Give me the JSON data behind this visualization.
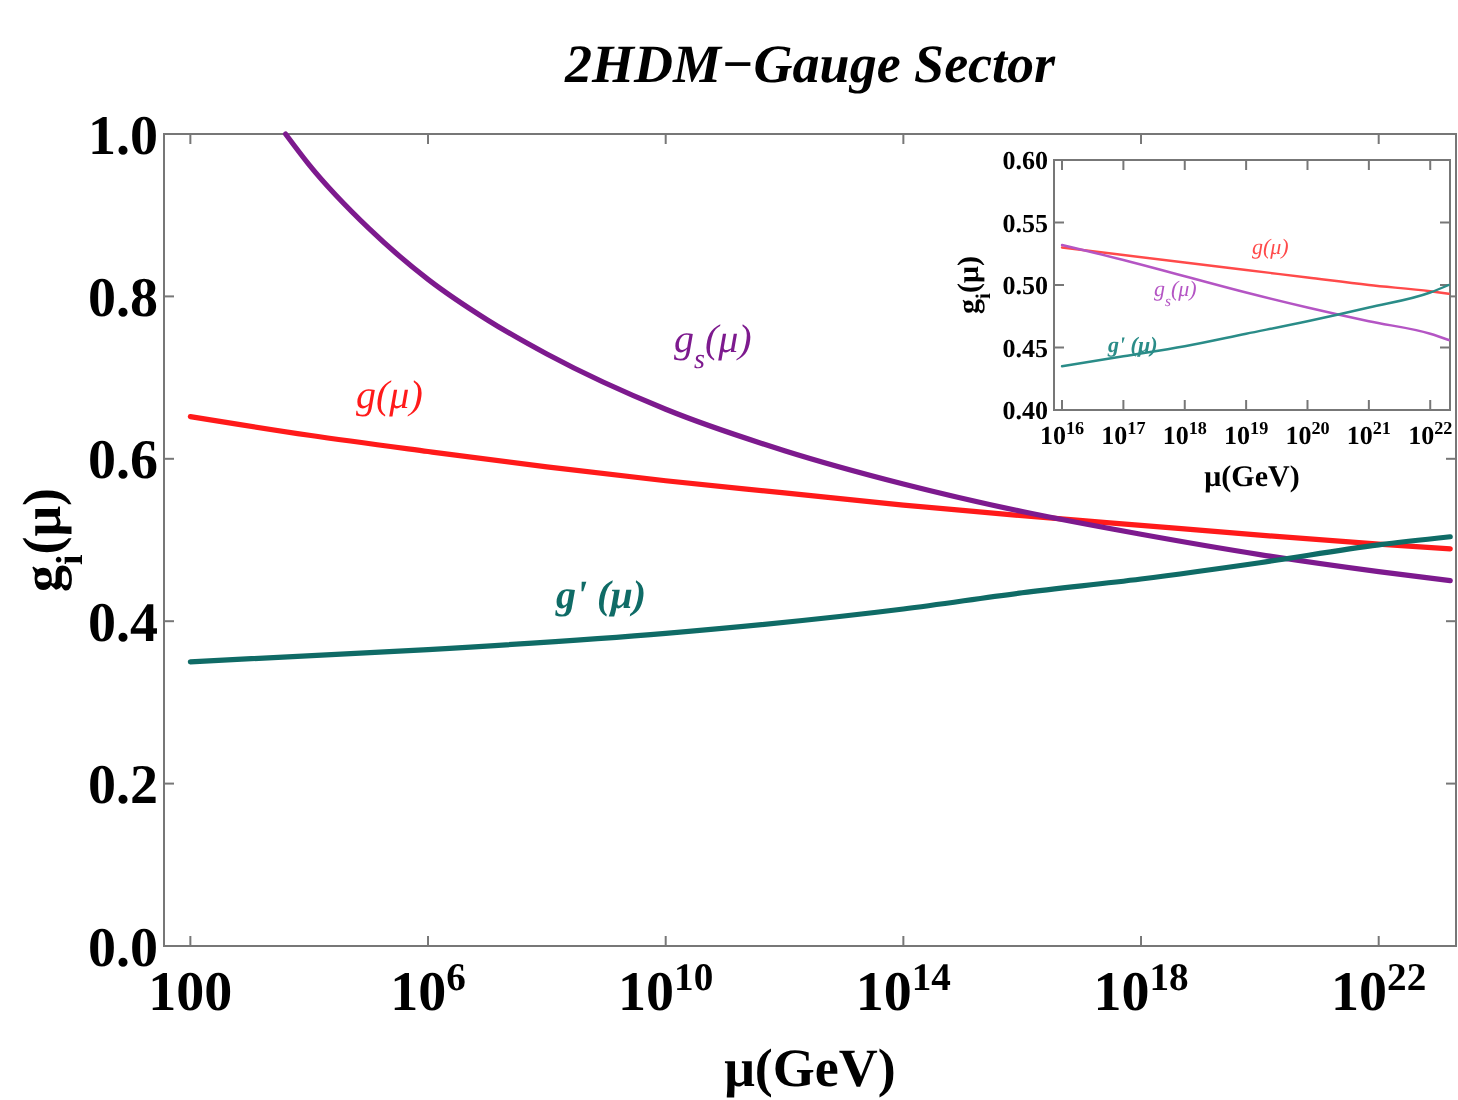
{
  "chart_data": [
    {
      "type": "line",
      "title": "2HDM−Gauge Sector",
      "xlabel": "μ(GeV)",
      "ylabel": "g$_{i}$(μ)",
      "log": "x",
      "grid": false,
      "line_style": "solid",
      "xlim": [
        36,
        2e+23
      ],
      "ylim": [
        0,
        1
      ],
      "xticks": [
        {
          "value": 100,
          "label": "100"
        },
        {
          "value": 1000000.0,
          "label": "10$^{6}$"
        },
        {
          "value": 10000000000.0,
          "label": "10$^{10}$"
        },
        {
          "value": 100000000000000.0,
          "label": "10$^{14}$"
        },
        {
          "value": 1e+18,
          "label": "10$^{18}$"
        },
        {
          "value": 1e+22,
          "label": "10$^{22}$"
        }
      ],
      "yticks": [
        {
          "value": 0,
          "label": "0.0"
        },
        {
          "value": 0.2,
          "label": "0.2"
        },
        {
          "value": 0.4,
          "label": "0.4"
        },
        {
          "value": 0.6,
          "label": "0.6"
        },
        {
          "value": 0.8,
          "label": "0.8"
        },
        {
          "value": 1,
          "label": "1.0"
        }
      ],
      "series": [
        {
          "name": "g(μ)",
          "color": "#ff1a1a",
          "x": [
            100,
            10000.0,
            1000000.0,
            100000000.0,
            10000000000.0,
            1000000000000.0,
            100000000000000.0,
            1e+16,
            1e+18,
            1e+20,
            1e+22,
            1.6e+23
          ],
          "values": [
            0.652,
            0.629,
            0.609,
            0.59,
            0.573,
            0.558,
            0.543,
            0.53,
            0.518,
            0.506,
            0.495,
            0.489
          ]
        },
        {
          "name": "g$_{s}$(μ)",
          "color": "#7d1a8e",
          "x": [
            4000,
            10000.0,
            100000.0,
            1000000.0,
            10000000.0,
            100000000.0,
            10000000000.0,
            1000000000000.0,
            100000000000000.0,
            1e+16,
            1e+18,
            1e+20,
            1e+22,
            1.6e+23
          ],
          "values": [
            1.0,
            0.962,
            0.884,
            0.821,
            0.771,
            0.729,
            0.661,
            0.61,
            0.569,
            0.535,
            0.507,
            0.482,
            0.461,
            0.45
          ]
        },
        {
          "name": "g' (μ)",
          "color": "#0f6b66",
          "x": [
            100,
            1000000.0,
            10000000000.0,
            100000000000000.0,
            1e+16,
            1e+18,
            1e+20,
            1e+22,
            1.6e+23
          ],
          "values": [
            0.35,
            0.365,
            0.385,
            0.415,
            0.435,
            0.452,
            0.472,
            0.494,
            0.504
          ]
        }
      ]
    },
    {
      "type": "line",
      "xlabel": "μ(GeV)",
      "ylabel": "g$_{i}$(μ)",
      "log": "x",
      "grid": false,
      "line_style": "solid",
      "xlim": [
        7400000000000000.0,
        2.1e+22
      ],
      "ylim": [
        0.4,
        0.6
      ],
      "xticks": [
        {
          "value": 1e+16,
          "label": "10$^{16}$"
        },
        {
          "value": 1e+17,
          "label": "10$^{17}$"
        },
        {
          "value": 1e+18,
          "label": "10$^{18}$"
        },
        {
          "value": 1e+19,
          "label": "10$^{19}$"
        },
        {
          "value": 1e+20,
          "label": "10$^{20}$"
        },
        {
          "value": 1e+21,
          "label": "10$^{21}$"
        },
        {
          "value": 1e+22,
          "label": "10$^{22}$"
        }
      ],
      "yticks": [
        {
          "value": 0.4,
          "label": "0.40"
        },
        {
          "value": 0.45,
          "label": "0.45"
        },
        {
          "value": 0.5,
          "label": "0.50"
        },
        {
          "value": 0.55,
          "label": "0.55"
        },
        {
          "value": 0.6,
          "label": "0.60"
        }
      ],
      "series": [
        {
          "name": "g(μ)",
          "color": "#ff4a4a",
          "x": [
            1e+16,
            1e+17,
            1e+18,
            1e+19,
            1e+20,
            1e+21,
            1e+22,
            2e+22
          ],
          "values": [
            0.53,
            0.524,
            0.518,
            0.512,
            0.506,
            0.5,
            0.495,
            0.493
          ]
        },
        {
          "name": "g$_{s}$(μ)",
          "color": "#b455c4",
          "x": [
            1e+16,
            1e+17,
            1e+18,
            1e+19,
            1e+20,
            1e+21,
            1e+22,
            2e+22
          ],
          "values": [
            0.532,
            0.52,
            0.507,
            0.494,
            0.482,
            0.471,
            0.461,
            0.456
          ]
        },
        {
          "name": "g' (μ)",
          "color": "#2a8c88",
          "x": [
            1e+16,
            1e+17,
            1e+18,
            1e+19,
            1e+20,
            1e+21,
            1e+22,
            2e+22
          ],
          "values": [
            0.435,
            0.443,
            0.451,
            0.461,
            0.471,
            0.482,
            0.494,
            0.5
          ]
        }
      ]
    }
  ]
}
